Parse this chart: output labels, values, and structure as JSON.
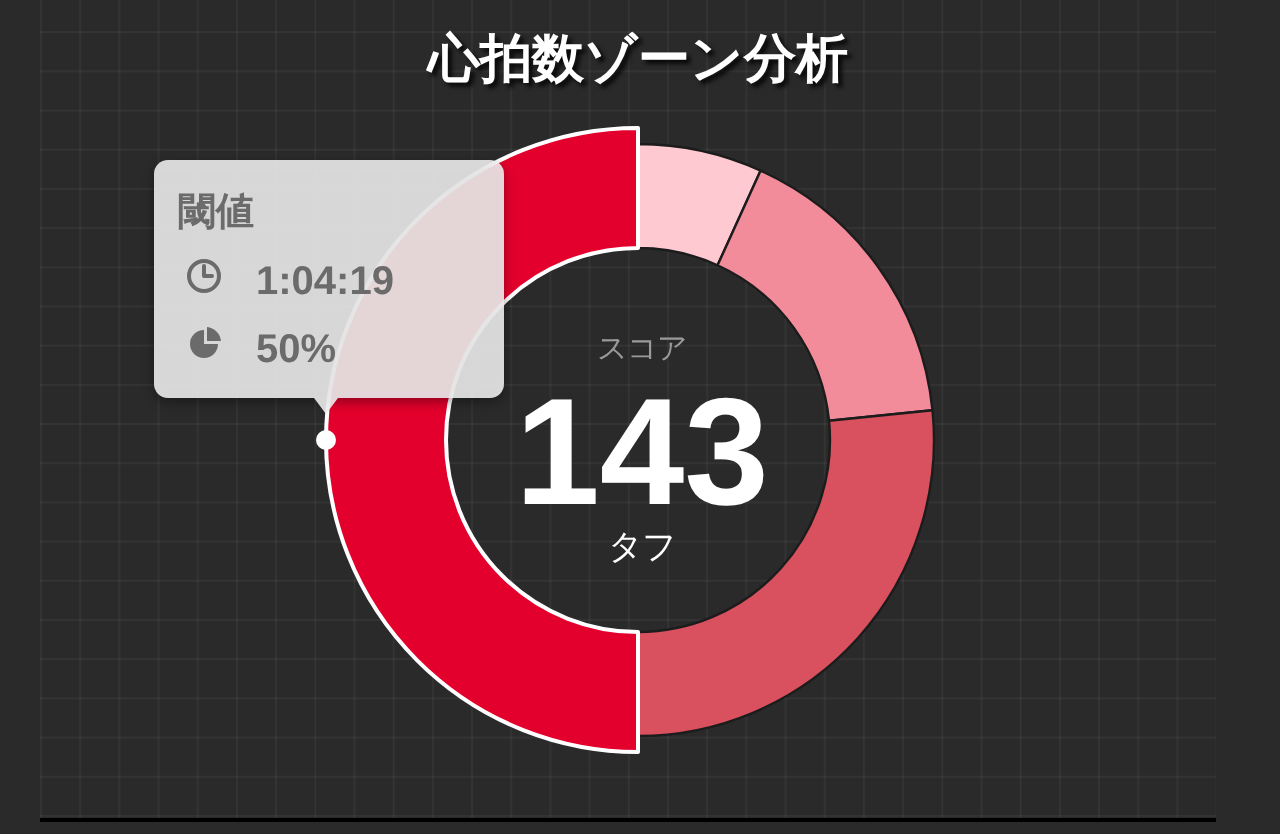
{
  "chart_data": {
    "type": "donut",
    "title": "心拍数ゾーン分析",
    "categories": [
      null,
      null,
      null,
      "閾値"
    ],
    "values": [
      6.8,
      16.6,
      26.6,
      50
    ],
    "colors": [
      "#ffc9d1",
      "#f28c9a",
      "#d9505f",
      "#e3002c"
    ],
    "value_labels": [
      null,
      null,
      null,
      "50%"
    ],
    "annotations": [
      "1:04:19",
      "スコア",
      "143",
      "タフ"
    ]
  }
}
